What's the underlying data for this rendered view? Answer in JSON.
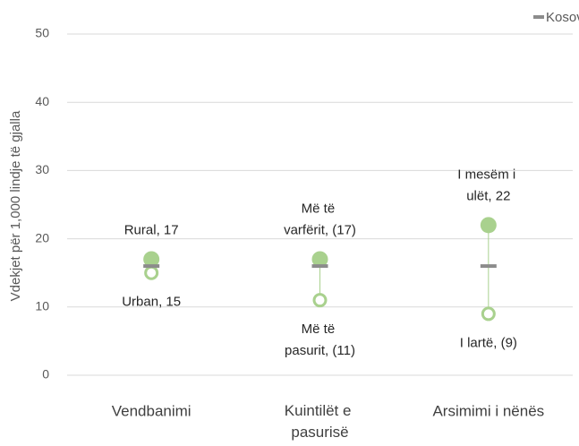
{
  "chart_data": {
    "type": "dot",
    "y_axis_label": "Vdekjet për 1,000 lindje të gjalla",
    "categories": [
      "Vendbanimi",
      "Kuintilët e pasurisë",
      "Arsimimi i nënës"
    ],
    "ylim": [
      0,
      50
    ],
    "yticks": [
      0,
      10,
      20,
      30,
      40,
      50
    ],
    "grid": true,
    "legend": "top-right",
    "series": [
      {
        "color": "#a9d18e",
        "marker": "filled",
        "values": [
          17,
          17,
          22
        ],
        "value_labels": [
          "Rural, 17",
          "Më të varfërit, (17)",
          "I mesëm i ulët, 22"
        ]
      },
      {
        "color": "#a9d18e",
        "marker": "ring",
        "values": [
          15,
          11,
          9
        ],
        "value_labels": [
          "Urban, 15",
          "Më të pasurit, (11)",
          "I lartë, (9)"
        ]
      },
      {
        "name": "Kosovë",
        "color": "#8c8c8c",
        "marker": "dash",
        "values": [
          16,
          16,
          16
        ]
      }
    ]
  }
}
